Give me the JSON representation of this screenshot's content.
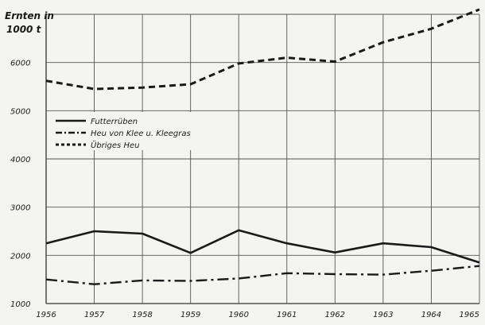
{
  "chart_data": {
    "type": "line",
    "ylabel": [
      "Ernten in",
      "1000 t"
    ],
    "x": [
      "1956",
      "1957",
      "1958",
      "1959",
      "1960",
      "1961",
      "1962",
      "1963",
      "1964",
      "1965"
    ],
    "ylim": [
      1000,
      7000
    ],
    "yticks": [
      1000,
      2000,
      3000,
      4000,
      5000,
      6000
    ],
    "grid": true,
    "legend_placement": "middle-left",
    "series": [
      {
        "name": "Futterrüben",
        "style": "solid",
        "values": [
          2250,
          2500,
          2450,
          2050,
          2520,
          2250,
          2060,
          2250,
          2170,
          1850
        ]
      },
      {
        "name": "Heu von Klee u. Kleegras",
        "style": "dash-dot",
        "values": [
          1500,
          1400,
          1480,
          1470,
          1520,
          1630,
          1610,
          1600,
          1680,
          1780
        ]
      },
      {
        "name": "Übriges Heu",
        "style": "dashed",
        "values": [
          5620,
          5450,
          5480,
          5550,
          5980,
          6100,
          6020,
          6420,
          6700,
          7100
        ]
      }
    ]
  }
}
